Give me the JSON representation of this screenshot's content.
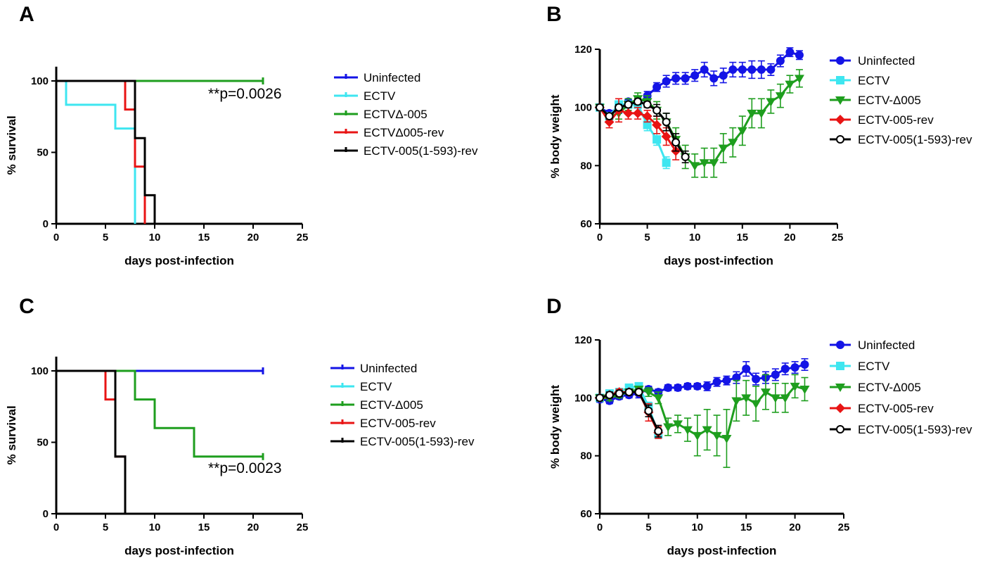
{
  "colors": {
    "uninfected": "#1414e6",
    "ectv": "#3ee6f0",
    "delta005": "#1e9e1e",
    "rev": "#e81414",
    "rev593": "#000000"
  },
  "chart_data": [
    {
      "panel": "A",
      "type": "line",
      "subtype": "kaplan-meier",
      "xlabel": "days post-infection",
      "ylabel": "% survival",
      "xlim": [
        0,
        25
      ],
      "ylim": [
        0,
        110
      ],
      "xticks": [
        "0",
        "5",
        "10",
        "15",
        "20",
        "25"
      ],
      "yticks": [
        "0",
        "50",
        "100"
      ],
      "annotation": "**p=0.0026",
      "legend_position": "right",
      "series": [
        {
          "name": "Uninfected",
          "color_key": "uninfected",
          "x": [
            0,
            21
          ],
          "y": [
            100,
            100
          ]
        },
        {
          "name": "ECTV",
          "color_key": "ectv",
          "x": [
            0,
            1,
            6,
            8
          ],
          "y": [
            100,
            83.3,
            66.7,
            0
          ]
        },
        {
          "name": "ECTVΔ-005",
          "color_key": "delta005",
          "x": [
            0,
            21
          ],
          "y": [
            100,
            100
          ]
        },
        {
          "name": "ECTVΔ005-rev",
          "color_key": "rev",
          "x": [
            0,
            7,
            8,
            9
          ],
          "y": [
            100,
            80,
            40,
            0
          ]
        },
        {
          "name": "ECTV-005(1-593)-rev",
          "color_key": "rev593",
          "x": [
            0,
            8,
            9,
            10
          ],
          "y": [
            100,
            60,
            20,
            0
          ]
        }
      ]
    },
    {
      "panel": "B",
      "type": "line",
      "subtype": "errorbar",
      "xlabel": "days post-infection",
      "ylabel": "% body weight",
      "xlim": [
        0,
        25
      ],
      "ylim": [
        60,
        120
      ],
      "xticks": [
        "0",
        "5",
        "10",
        "15",
        "20",
        "25"
      ],
      "yticks": [
        "60",
        "80",
        "100",
        "120"
      ],
      "legend_position": "right",
      "series": [
        {
          "name": "Uninfected",
          "color_key": "uninfected",
          "marker": "circle",
          "x": [
            0,
            1,
            2,
            3,
            4,
            5,
            6,
            7,
            8,
            9,
            10,
            11,
            12,
            13,
            14,
            15,
            16,
            17,
            18,
            19,
            20,
            21
          ],
          "y": [
            100,
            98,
            99,
            102,
            101,
            104,
            107,
            109,
            110,
            110,
            111,
            113,
            110,
            111,
            113,
            113,
            113,
            113,
            113,
            116,
            119,
            118
          ],
          "err": [
            1,
            1,
            1,
            1,
            1,
            1.5,
            1.5,
            2,
            2,
            2,
            2,
            2.5,
            2.5,
            2.5,
            2.5,
            2.5,
            3,
            3,
            2,
            2,
            1.5,
            1.5
          ]
        },
        {
          "name": "ECTV",
          "color_key": "ectv",
          "marker": "square",
          "x": [
            0,
            1,
            2,
            3,
            4,
            5,
            6,
            7
          ],
          "y": [
            100,
            97,
            101,
            101,
            101,
            94,
            89,
            81
          ],
          "err": [
            1,
            1,
            1,
            1,
            1,
            2,
            2,
            2
          ]
        },
        {
          "name": "ECTV-Δ005",
          "color_key": "delta005",
          "marker": "triangle-down",
          "x": [
            0,
            1,
            2,
            3,
            4,
            5,
            6,
            7,
            8,
            9,
            10,
            11,
            12,
            13,
            14,
            15,
            16,
            17,
            18,
            19,
            20,
            21
          ],
          "y": [
            100,
            97,
            98,
            101,
            103,
            102,
            99,
            95,
            89,
            83,
            80,
            81,
            81,
            86,
            88,
            92,
            98,
            98,
            102,
            104,
            108,
            110
          ],
          "err": [
            1,
            1,
            2,
            2,
            2,
            2,
            3,
            3,
            4,
            4,
            4,
            5,
            5,
            5,
            5,
            5,
            5,
            5,
            4,
            4,
            3,
            3
          ]
        },
        {
          "name": "ECTV-005-rev",
          "color_key": "rev",
          "marker": "diamond",
          "x": [
            0,
            1,
            2,
            3,
            4,
            5,
            6,
            7,
            8
          ],
          "y": [
            100,
            95,
            99,
            98,
            98,
            97,
            94,
            90,
            85
          ],
          "err": [
            1,
            2,
            4,
            2,
            2,
            2,
            3,
            3,
            3
          ]
        },
        {
          "name": "ECTV-005(1-593)-rev",
          "color_key": "rev593",
          "marker": "open-circle",
          "x": [
            0,
            1,
            2,
            3,
            4,
            5,
            6,
            7,
            8,
            9
          ],
          "y": [
            100,
            97,
            100,
            101,
            102,
            101,
            99,
            95,
            88,
            83
          ],
          "err": [
            1,
            1,
            1,
            1,
            1,
            1,
            2,
            3,
            3,
            2
          ]
        }
      ]
    },
    {
      "panel": "C",
      "type": "line",
      "subtype": "kaplan-meier",
      "xlabel": "days post-infection",
      "ylabel": "% survival",
      "xlim": [
        0,
        25
      ],
      "ylim": [
        0,
        110
      ],
      "xticks": [
        "0",
        "5",
        "10",
        "15",
        "20",
        "25"
      ],
      "yticks": [
        "0",
        "50",
        "100"
      ],
      "annotation": "**p=0.0023",
      "legend_position": "right",
      "series": [
        {
          "name": "Uninfected",
          "color_key": "uninfected",
          "x": [
            0,
            21
          ],
          "y": [
            100,
            100
          ]
        },
        {
          "name": "ECTV",
          "color_key": "ectv",
          "x": [
            0,
            6,
            7
          ],
          "y": [
            100,
            40,
            0
          ]
        },
        {
          "name": "ECTV-Δ005",
          "color_key": "delta005",
          "x": [
            0,
            8,
            10,
            14,
            21
          ],
          "y": [
            100,
            80,
            60,
            40,
            40
          ]
        },
        {
          "name": "ECTV-005-rev",
          "color_key": "rev",
          "x": [
            0,
            5,
            6,
            7
          ],
          "y": [
            100,
            80,
            40,
            0
          ]
        },
        {
          "name": "ECTV-005(1-593)-rev",
          "color_key": "rev593",
          "x": [
            0,
            6,
            7
          ],
          "y": [
            100,
            40,
            0
          ]
        }
      ]
    },
    {
      "panel": "D",
      "type": "line",
      "subtype": "errorbar",
      "xlabel": "days post-infection",
      "ylabel": "% body weight",
      "xlim": [
        0,
        25
      ],
      "ylim": [
        60,
        120
      ],
      "xticks": [
        "0",
        "5",
        "10",
        "15",
        "20",
        "25"
      ],
      "yticks": [
        "60",
        "80",
        "100",
        "120"
      ],
      "legend_position": "right",
      "series": [
        {
          "name": "Uninfected",
          "color_key": "uninfected",
          "marker": "circle",
          "x": [
            0,
            1,
            2,
            3,
            4,
            5,
            6,
            7,
            8,
            9,
            10,
            11,
            12,
            13,
            14,
            15,
            16,
            17,
            18,
            19,
            20,
            21
          ],
          "y": [
            99.5,
            99,
            100.5,
            101,
            101.5,
            103,
            102,
            103.5,
            103.5,
            104,
            104,
            104,
            105.5,
            106,
            107,
            110,
            106.5,
            107,
            108,
            110,
            110.5,
            111.5
          ],
          "err": [
            1,
            1,
            1,
            1,
            1.5,
            1,
            1,
            1,
            1,
            1,
            1,
            1.5,
            1.5,
            1.5,
            2,
            2.5,
            2,
            2,
            2,
            2,
            2,
            2
          ]
        },
        {
          "name": "ECTV",
          "color_key": "ectv",
          "marker": "square",
          "x": [
            0,
            1,
            2,
            3,
            4,
            5,
            6
          ],
          "y": [
            100,
            101.5,
            102,
            103.5,
            104,
            97,
            87.5
          ],
          "err": [
            1,
            1,
            1,
            1,
            1,
            1.5,
            1.5
          ]
        },
        {
          "name": "ECTV-Δ005",
          "color_key": "delta005",
          "marker": "triangle-down",
          "x": [
            0,
            1,
            2,
            3,
            4,
            5,
            6,
            7,
            8,
            9,
            10,
            11,
            12,
            13,
            14,
            15,
            16,
            17,
            18,
            19,
            20,
            21
          ],
          "y": [
            100,
            100,
            101,
            102,
            103,
            102,
            100,
            90,
            91,
            89,
            87,
            89,
            87,
            86,
            99,
            100,
            98,
            102,
            100,
            100,
            104,
            103
          ],
          "err": [
            1,
            1,
            1,
            1,
            1,
            1.5,
            2,
            3,
            3,
            4,
            7,
            7,
            7,
            10,
            7,
            6,
            6,
            6,
            5,
            5,
            4,
            4
          ]
        },
        {
          "name": "ECTV-005-rev",
          "color_key": "rev",
          "marker": "diamond",
          "x": [
            0,
            1,
            2,
            3,
            4,
            5,
            6
          ],
          "y": [
            100,
            101,
            102,
            102,
            102,
            95,
            88
          ],
          "err": [
            1,
            1,
            1,
            1,
            1,
            3,
            2
          ]
        },
        {
          "name": "ECTV-005(1-593)-rev",
          "color_key": "rev593",
          "marker": "open-circle",
          "x": [
            0,
            1,
            2,
            3,
            4,
            5,
            6
          ],
          "y": [
            100,
            101,
            101.5,
            102,
            102,
            95.5,
            88.5
          ],
          "err": [
            1,
            1,
            1,
            1,
            1,
            2,
            2
          ]
        }
      ]
    }
  ]
}
